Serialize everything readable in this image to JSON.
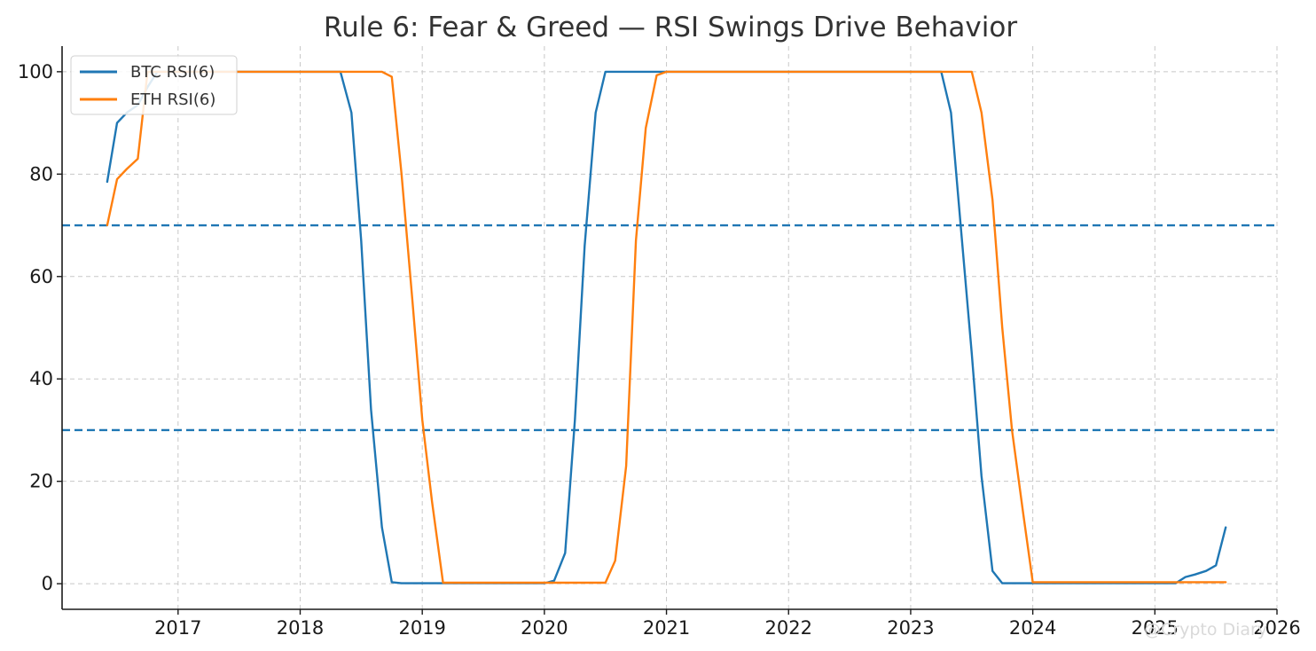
{
  "chart_data": {
    "type": "line",
    "title": "Rule 6: Fear & Greed — RSI Swings Drive Behavior",
    "xlabel": "",
    "ylabel": "",
    "xlim": [
      2016.05,
      2026.0
    ],
    "ylim": [
      -5,
      105
    ],
    "x_ticks": [
      2017,
      2018,
      2019,
      2020,
      2021,
      2022,
      2023,
      2024,
      2025,
      2026
    ],
    "x_tick_labels": [
      "2017",
      "2018",
      "2019",
      "2020",
      "2021",
      "2022",
      "2023",
      "2024",
      "2025",
      "2026"
    ],
    "y_ticks": [
      0,
      20,
      40,
      60,
      80,
      100
    ],
    "y_tick_labels": [
      "0",
      "20",
      "40",
      "60",
      "80",
      "100"
    ],
    "grid": true,
    "legend_position": "upper-left",
    "reference_lines": [
      {
        "y": 70,
        "color": "#1f77b4",
        "style": "dashed"
      },
      {
        "y": 30,
        "color": "#1f77b4",
        "style": "dashed"
      }
    ],
    "series": [
      {
        "name": "BTC RSI(6)",
        "color": "#1f77b4",
        "x": [
          2016.42,
          2016.5,
          2016.58,
          2016.67,
          2016.75,
          2016.83,
          2016.92,
          2017.0,
          2017.5,
          2018.0,
          2018.33,
          2018.42,
          2018.5,
          2018.58,
          2018.67,
          2018.75,
          2018.83,
          2018.92,
          2019.0,
          2019.5,
          2020.0,
          2020.08,
          2020.17,
          2020.25,
          2020.33,
          2020.42,
          2020.5,
          2021.0,
          2022.0,
          2023.0,
          2023.25,
          2023.33,
          2023.42,
          2023.5,
          2023.58,
          2023.67,
          2023.75,
          2023.83,
          2024.0,
          2025.0,
          2025.17,
          2025.25,
          2025.33,
          2025.42,
          2025.5,
          2025.58
        ],
        "y": [
          78.5,
          90,
          92,
          93.5,
          97,
          100,
          100,
          100,
          100,
          100,
          100,
          92,
          67,
          34,
          11,
          0.3,
          0.1,
          0.1,
          0.1,
          0.1,
          0.1,
          0.6,
          6,
          32,
          66,
          92,
          100,
          100,
          100,
          100,
          100,
          92,
          67,
          45,
          21,
          2.5,
          0.1,
          0.1,
          0.1,
          0.1,
          0.1,
          1.3,
          1.8,
          2.5,
          3.6,
          11
        ]
      },
      {
        "name": "ETH RSI(6)",
        "color": "#ff7f0e",
        "x": [
          2016.42,
          2016.5,
          2016.58,
          2016.67,
          2016.75,
          2016.83,
          2016.92,
          2017.0,
          2017.5,
          2018.0,
          2018.5,
          2018.67,
          2018.75,
          2018.83,
          2018.92,
          2019.0,
          2019.08,
          2019.17,
          2019.5,
          2020.0,
          2020.5,
          2020.58,
          2020.67,
          2020.75,
          2020.83,
          2020.92,
          2021.0,
          2022.0,
          2023.0,
          2023.5,
          2023.58,
          2023.67,
          2023.75,
          2023.83,
          2023.92,
          2024.0,
          2025.0,
          2025.58
        ],
        "y": [
          70,
          79,
          81,
          83,
          100,
          100,
          100,
          100,
          100,
          100,
          100,
          100,
          99,
          80,
          55,
          32,
          16,
          0.2,
          0.2,
          0.2,
          0.2,
          4.5,
          23,
          67,
          89,
          99.3,
          100,
          100,
          100,
          100,
          92,
          75,
          50,
          30,
          14,
          0.3,
          0.3,
          0.3
        ]
      }
    ]
  },
  "watermark": {
    "text": "@Crypto Diary"
  }
}
